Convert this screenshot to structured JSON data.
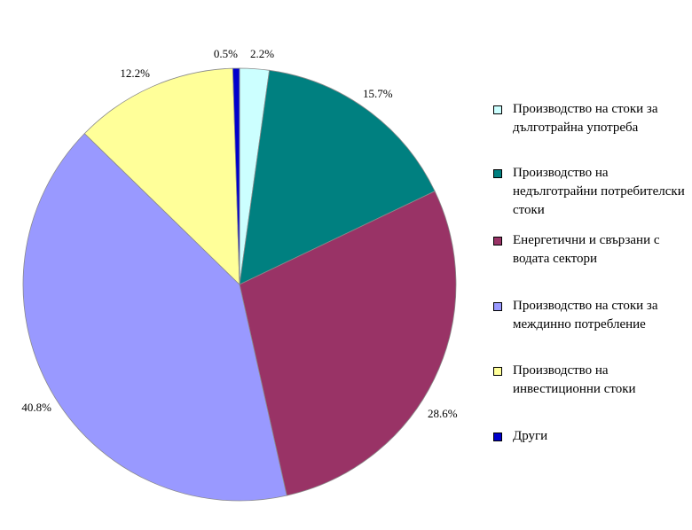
{
  "chart_data": {
    "type": "pie",
    "categories": [
      "Производство на стоки за дълготрайна употреба",
      "Производство на недълготрайни потребителски стоки",
      "Енергетични и свързани с водата сектори",
      "Производство на стоки за междинно потребление",
      "Производство на инвестиционни стоки",
      "Други"
    ],
    "values": [
      2.2,
      15.7,
      28.6,
      40.8,
      12.2,
      0.5
    ],
    "labels": [
      "2.2%",
      "15.7%",
      "28.6%",
      "40.8%",
      "12.2%",
      "0.5%"
    ],
    "colors": [
      "#CCFFFF",
      "#008080",
      "#993366",
      "#9999FF",
      "#FFFF99",
      "#0000CC"
    ],
    "legend_position": "right",
    "start_angle": "12 o'clock",
    "direction": "clockwise"
  }
}
